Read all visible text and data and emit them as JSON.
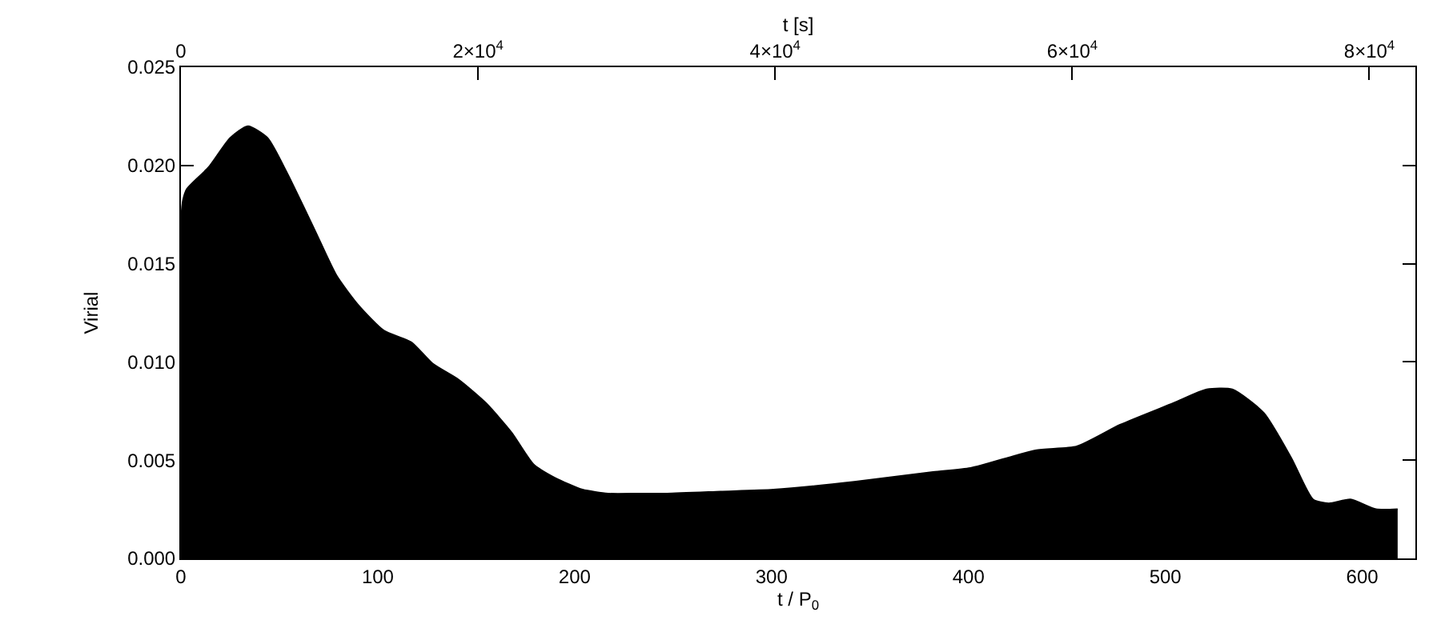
{
  "chart_data": {
    "type": "area",
    "xlabel": "t / P$_{0}$",
    "ylabel": "Virial",
    "x2label": "t [s]",
    "x": [
      0,
      1,
      3,
      14,
      25,
      34,
      44,
      54,
      68,
      79,
      90,
      103,
      117,
      128,
      141,
      155,
      168,
      179,
      190,
      204,
      217,
      233,
      247,
      274,
      301,
      342,
      382,
      401,
      434,
      455,
      477,
      504,
      521,
      534,
      550,
      564,
      575,
      583,
      594,
      607,
      618
    ],
    "series": [
      {
        "color": "#000000",
        "values": [
          0.0172,
          0.0182,
          0.0188,
          0.0199,
          0.0214,
          0.022,
          0.0214,
          0.0196,
          0.0167,
          0.0144,
          0.0129,
          0.0116,
          0.011,
          0.0099,
          0.0091,
          0.0079,
          0.0064,
          0.0048,
          0.0041,
          0.0035,
          0.0033,
          0.0033,
          0.0033,
          0.0034,
          0.0035,
          0.0039,
          0.0044,
          0.0046,
          0.0055,
          0.0057,
          0.0068,
          0.0079,
          0.0086,
          0.0086,
          0.0074,
          0.0051,
          0.003,
          0.0028,
          0.003,
          0.0025,
          0.0025
        ]
      }
    ],
    "xlim": [
      0,
      627
    ],
    "xticks": [
      0,
      100,
      200,
      300,
      400,
      500,
      600
    ],
    "x2lim": [
      0,
      83100
    ],
    "x2ticks": [
      0,
      {
        "value": 20000,
        "label": "2×10$^{4}$"
      },
      {
        "value": 40000,
        "label": "4×10$^{4}$"
      },
      {
        "value": 60000,
        "label": "6×10$^{4}$"
      },
      {
        "value": 80000,
        "label": "8×10$^{4}$"
      }
    ],
    "ylim": [
      0,
      0.025
    ],
    "yticks": [
      {
        "value": 0,
        "label": "0.000"
      },
      {
        "value": 0.005,
        "label": "0.005"
      },
      {
        "value": 0.01,
        "label": "0.010"
      },
      {
        "value": 0.015,
        "label": "0.015"
      },
      {
        "value": 0.02,
        "label": "0.020"
      },
      {
        "value": 0.025,
        "label": "0.025"
      }
    ],
    "marker": "none"
  }
}
